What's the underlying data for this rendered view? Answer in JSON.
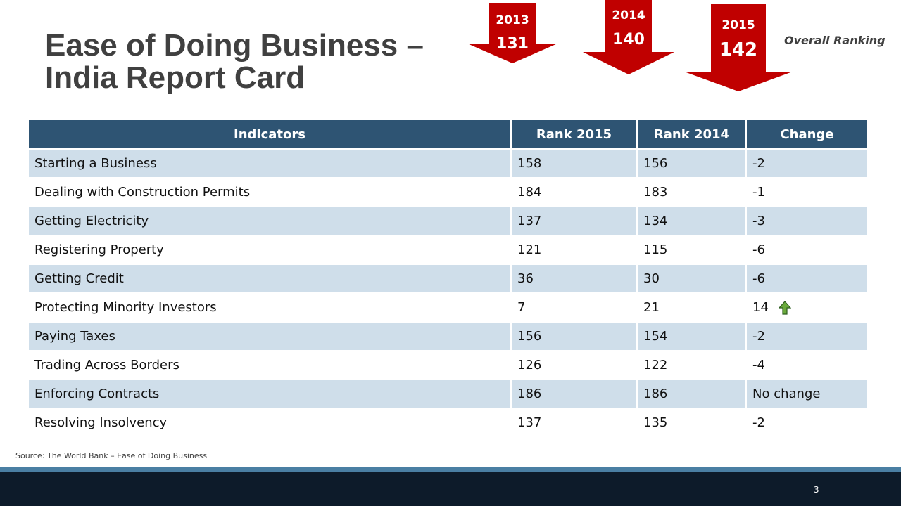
{
  "slide": {
    "title_line1": "Ease of Doing Business –",
    "title_line2": "India Report Card",
    "overall_label": "Overall Ranking",
    "source": "Source: The World Bank – Ease of Doing Business",
    "page_number": "3"
  },
  "rankings": [
    {
      "year": "2013",
      "rank": "131"
    },
    {
      "year": "2014",
      "rank": "140"
    },
    {
      "year": "2015",
      "rank": "142"
    }
  ],
  "arrow_color": "#c00000",
  "table": {
    "headers": [
      "Indicators",
      "Rank 2015",
      "Rank 2014",
      "Change"
    ],
    "header_color": "#2e5473",
    "band_color": "#cfdeea",
    "rows": [
      [
        "Starting a Business",
        "158",
        "156",
        "-2"
      ],
      [
        "Dealing with Construction Permits",
        "184",
        "183",
        "-1"
      ],
      [
        "Getting Electricity",
        "137",
        "134",
        "-3"
      ],
      [
        "Registering Property",
        "121",
        "115",
        "-6"
      ],
      [
        "Getting Credit",
        "36",
        "30",
        "-6"
      ],
      [
        "Protecting Minority Investors",
        "7",
        "21",
        "14"
      ],
      [
        "Paying Taxes",
        "156",
        "154",
        "-2"
      ],
      [
        "Trading Across Borders",
        "126",
        "122",
        "-4"
      ],
      [
        "Enforcing Contracts",
        "186",
        "186",
        "No change"
      ],
      [
        "Resolving Insolvency",
        "137",
        "135",
        "-2"
      ]
    ],
    "up_icon_row": 5,
    "up_icon": "up-arrow-icon"
  }
}
